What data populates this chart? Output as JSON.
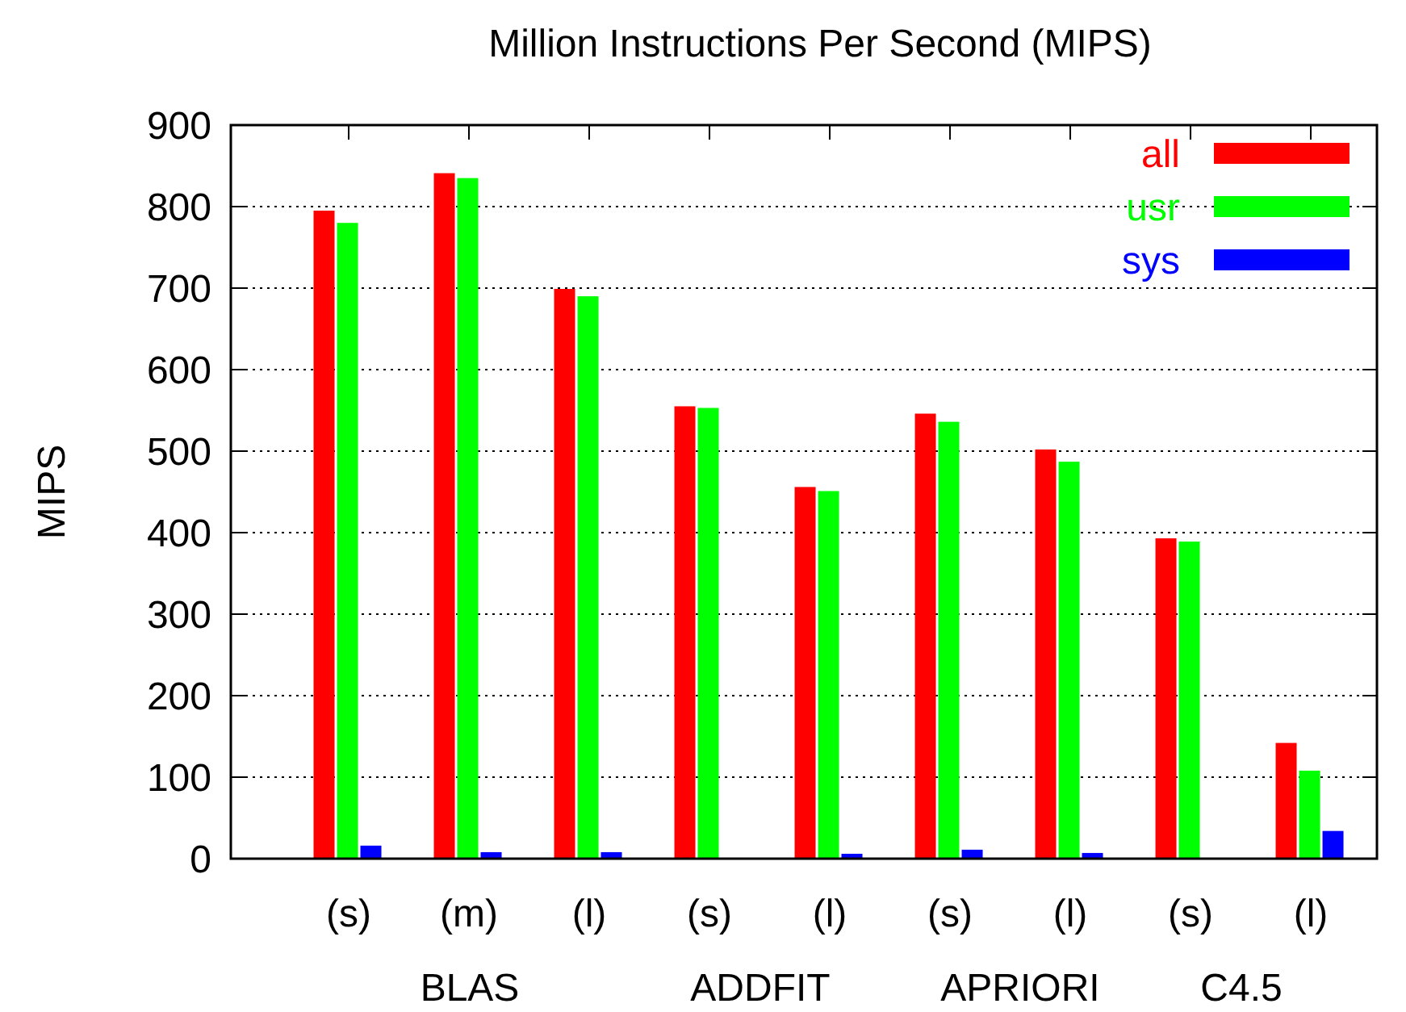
{
  "chart_data": {
    "type": "bar",
    "title": "Million Instructions Per Second (MIPS)",
    "ylabel": "MIPS",
    "categories": [
      "(s)",
      "(m)",
      "(l)",
      "(s)",
      "(l)",
      "(s)",
      "(l)",
      "(s)",
      "(l)"
    ],
    "series": [
      {
        "name": "all",
        "color": "#ff0000",
        "values": [
          795,
          841,
          699,
          555,
          456,
          546,
          502,
          393,
          142
        ]
      },
      {
        "name": "usr",
        "color": "#00ff00",
        "values": [
          780,
          835,
          690,
          553,
          451,
          536,
          487,
          389,
          108
        ]
      },
      {
        "name": "sys",
        "color": "#0000ff",
        "values": [
          16,
          8,
          8,
          1,
          6,
          11,
          7,
          1,
          34
        ]
      }
    ],
    "annotations": [
      "BLAS",
      "ADDFIT",
      "APRIORI",
      "C4.5"
    ],
    "ylim": [
      0,
      900
    ],
    "yticks": [
      0,
      100,
      200,
      300,
      400,
      500,
      600,
      700,
      800,
      900
    ],
    "grid": "y",
    "legend": "top right"
  }
}
